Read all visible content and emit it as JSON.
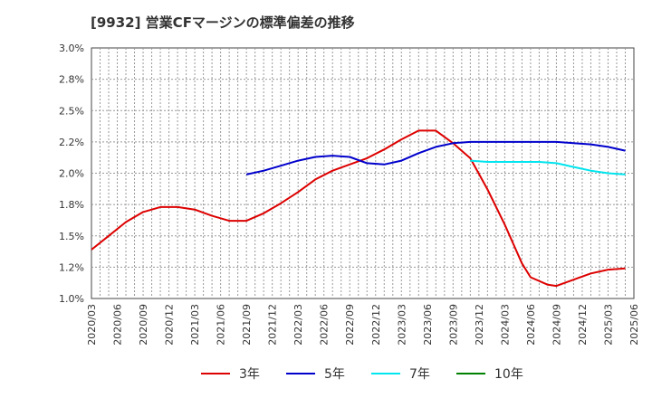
{
  "chart_data": {
    "type": "line",
    "title": "[9932]  営業CFマージンの標準偏差の推移",
    "x_ticks": [
      "2020/03",
      "2020/06",
      "2020/09",
      "2020/12",
      "2021/03",
      "2021/06",
      "2021/09",
      "2021/12",
      "2022/03",
      "2022/06",
      "2022/09",
      "2022/12",
      "2023/03",
      "2023/06",
      "2023/09",
      "2023/12",
      "2024/03",
      "2024/06",
      "2024/09",
      "2024/12",
      "2025/03",
      "2025/06"
    ],
    "y_ticks": [
      "1.0%",
      "1.2%",
      "1.5%",
      "1.8%",
      "2.0%",
      "2.2%",
      "2.5%",
      "2.8%",
      "3.0%"
    ],
    "ylim": [
      1.0,
      3.0
    ],
    "grid": true,
    "legend_position": "bottom",
    "colors": {
      "3年": "#dd0000",
      "5年": "#0000cc",
      "7年": "#00e5ee",
      "10年": "#008000"
    },
    "series": [
      {
        "name": "3年",
        "color": "#dd0000",
        "points": [
          [
            "2020/03",
            1.39
          ],
          [
            "2020/05",
            1.5
          ],
          [
            "2020/07",
            1.61
          ],
          [
            "2020/09",
            1.69
          ],
          [
            "2020/11",
            1.73
          ],
          [
            "2021/01",
            1.73
          ],
          [
            "2021/03",
            1.71
          ],
          [
            "2021/05",
            1.66
          ],
          [
            "2021/07",
            1.62
          ],
          [
            "2021/09",
            1.62
          ],
          [
            "2021/11",
            1.68
          ],
          [
            "2022/01",
            1.76
          ],
          [
            "2022/03",
            1.85
          ],
          [
            "2022/05",
            1.95
          ],
          [
            "2022/07",
            2.02
          ],
          [
            "2022/09",
            2.07
          ],
          [
            "2022/11",
            2.12
          ],
          [
            "2023/01",
            2.19
          ],
          [
            "2023/03",
            2.27
          ],
          [
            "2023/05",
            2.34
          ],
          [
            "2023/07",
            2.34
          ],
          [
            "2023/09",
            2.24
          ],
          [
            "2023/11",
            2.12
          ],
          [
            "2024/01",
            1.87
          ],
          [
            "2024/03",
            1.59
          ],
          [
            "2024/05",
            1.28
          ],
          [
            "2024/06",
            1.17
          ],
          [
            "2024/08",
            1.11
          ],
          [
            "2024/09",
            1.1
          ],
          [
            "2024/11",
            1.15
          ],
          [
            "2025/01",
            1.2
          ],
          [
            "2025/03",
            1.23
          ],
          [
            "2025/05",
            1.24
          ]
        ]
      },
      {
        "name": "5年",
        "color": "#0000cc",
        "points": [
          [
            "2021/09",
            1.99
          ],
          [
            "2021/11",
            2.02
          ],
          [
            "2022/01",
            2.06
          ],
          [
            "2022/03",
            2.1
          ],
          [
            "2022/05",
            2.13
          ],
          [
            "2022/07",
            2.14
          ],
          [
            "2022/09",
            2.13
          ],
          [
            "2022/11",
            2.08
          ],
          [
            "2023/01",
            2.07
          ],
          [
            "2023/03",
            2.1
          ],
          [
            "2023/05",
            2.16
          ],
          [
            "2023/07",
            2.21
          ],
          [
            "2023/09",
            2.24
          ],
          [
            "2023/11",
            2.25
          ],
          [
            "2024/01",
            2.25
          ],
          [
            "2024/03",
            2.25
          ],
          [
            "2024/05",
            2.25
          ],
          [
            "2024/07",
            2.25
          ],
          [
            "2024/09",
            2.25
          ],
          [
            "2024/11",
            2.24
          ],
          [
            "2025/01",
            2.23
          ],
          [
            "2025/03",
            2.21
          ],
          [
            "2025/05",
            2.18
          ]
        ]
      },
      {
        "name": "7年",
        "color": "#00e5ee",
        "points": [
          [
            "2023/11",
            2.1
          ],
          [
            "2024/01",
            2.09
          ],
          [
            "2024/03",
            2.09
          ],
          [
            "2024/05",
            2.09
          ],
          [
            "2024/07",
            2.09
          ],
          [
            "2024/09",
            2.08
          ],
          [
            "2024/11",
            2.05
          ],
          [
            "2025/01",
            2.02
          ],
          [
            "2025/03",
            2.0
          ],
          [
            "2025/05",
            1.99
          ]
        ]
      },
      {
        "name": "10年",
        "color": "#008000",
        "points": []
      }
    ]
  }
}
